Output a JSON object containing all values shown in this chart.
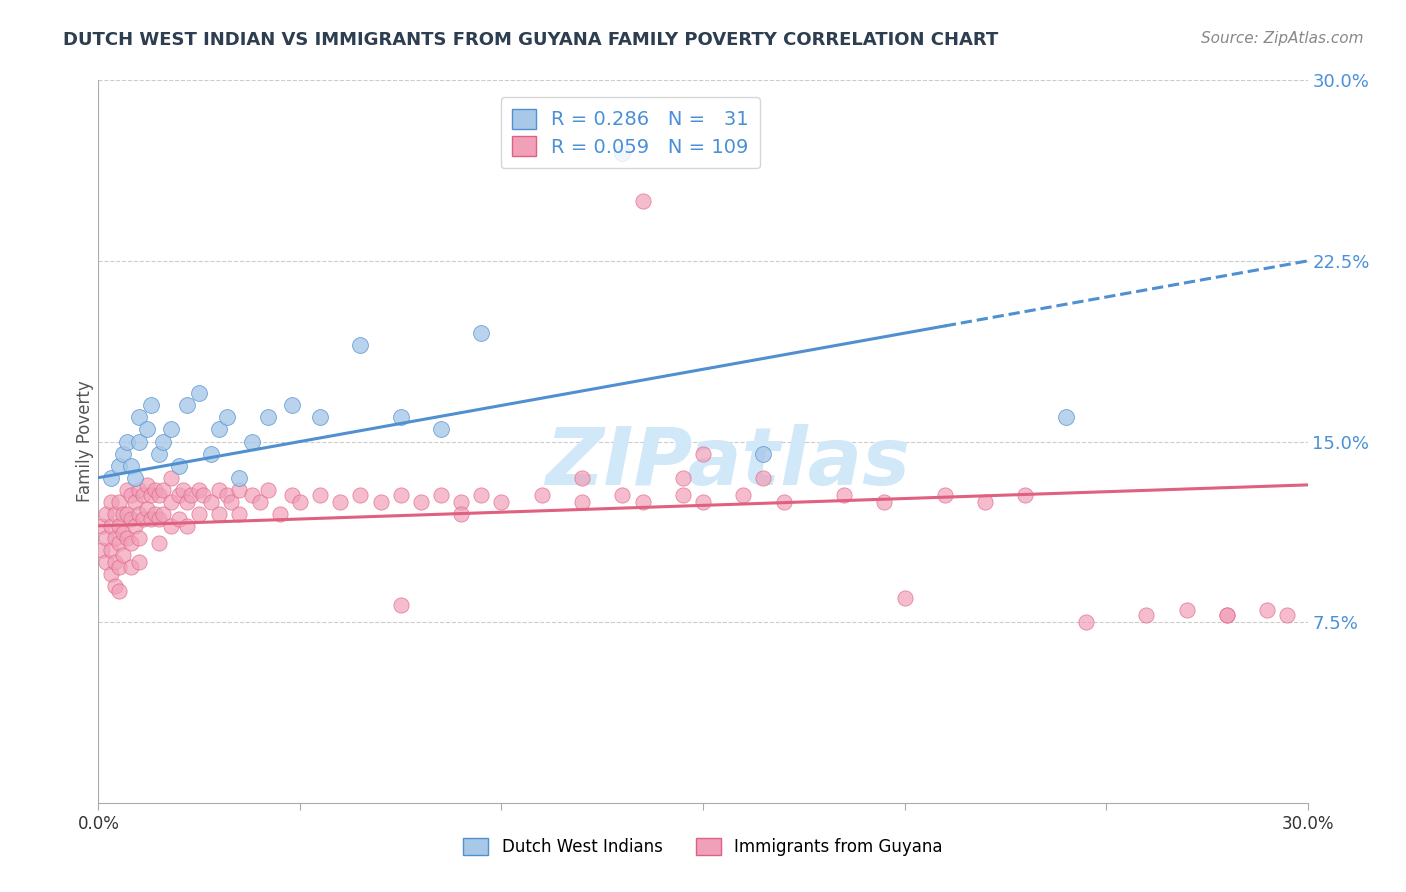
{
  "title": "DUTCH WEST INDIAN VS IMMIGRANTS FROM GUYANA FAMILY POVERTY CORRELATION CHART",
  "source": "Source: ZipAtlas.com",
  "ylabel": "Family Poverty",
  "xlim": [
    0.0,
    0.3
  ],
  "ylim": [
    0.0,
    0.3
  ],
  "legend1_label": "Dutch West Indians",
  "legend2_label": "Immigrants from Guyana",
  "R1": 0.286,
  "N1": 31,
  "R2": 0.059,
  "N2": 109,
  "color1": "#a8c8e8",
  "color2": "#f0a0b8",
  "line1_color": "#5090d0",
  "line2_color": "#e06080",
  "watermark_color": "#d0e8f8",
  "background_color": "#ffffff",
  "grid_color": "#cccccc",
  "scatter1_x": [
    0.003,
    0.005,
    0.006,
    0.007,
    0.008,
    0.009,
    0.01,
    0.01,
    0.012,
    0.013,
    0.015,
    0.016,
    0.018,
    0.02,
    0.022,
    0.025,
    0.028,
    0.03,
    0.032,
    0.035,
    0.038,
    0.042,
    0.048,
    0.055,
    0.065,
    0.075,
    0.085,
    0.095,
    0.13,
    0.165,
    0.24
  ],
  "scatter1_y": [
    0.135,
    0.14,
    0.145,
    0.15,
    0.14,
    0.135,
    0.15,
    0.16,
    0.155,
    0.165,
    0.145,
    0.15,
    0.155,
    0.14,
    0.165,
    0.17,
    0.145,
    0.155,
    0.16,
    0.135,
    0.15,
    0.16,
    0.165,
    0.16,
    0.19,
    0.16,
    0.155,
    0.195,
    0.27,
    0.145,
    0.16
  ],
  "scatter2_x": [
    0.001,
    0.001,
    0.002,
    0.002,
    0.002,
    0.003,
    0.003,
    0.003,
    0.003,
    0.004,
    0.004,
    0.004,
    0.004,
    0.005,
    0.005,
    0.005,
    0.005,
    0.005,
    0.006,
    0.006,
    0.006,
    0.007,
    0.007,
    0.007,
    0.008,
    0.008,
    0.008,
    0.008,
    0.009,
    0.009,
    0.01,
    0.01,
    0.01,
    0.01,
    0.011,
    0.011,
    0.012,
    0.012,
    0.013,
    0.013,
    0.014,
    0.014,
    0.015,
    0.015,
    0.015,
    0.016,
    0.016,
    0.018,
    0.018,
    0.018,
    0.02,
    0.02,
    0.021,
    0.022,
    0.022,
    0.023,
    0.025,
    0.025,
    0.026,
    0.028,
    0.03,
    0.03,
    0.032,
    0.033,
    0.035,
    0.035,
    0.038,
    0.04,
    0.042,
    0.045,
    0.048,
    0.05,
    0.055,
    0.06,
    0.065,
    0.07,
    0.075,
    0.08,
    0.085,
    0.09,
    0.095,
    0.1,
    0.11,
    0.12,
    0.13,
    0.135,
    0.145,
    0.15,
    0.16,
    0.17,
    0.185,
    0.195,
    0.21,
    0.22,
    0.23,
    0.245,
    0.26,
    0.27,
    0.28,
    0.29,
    0.295,
    0.135,
    0.075,
    0.165,
    0.2,
    0.28,
    0.15,
    0.09,
    0.12,
    0.145
  ],
  "scatter2_y": [
    0.115,
    0.105,
    0.12,
    0.11,
    0.1,
    0.125,
    0.115,
    0.105,
    0.095,
    0.12,
    0.11,
    0.1,
    0.09,
    0.125,
    0.115,
    0.108,
    0.098,
    0.088,
    0.12,
    0.112,
    0.103,
    0.13,
    0.12,
    0.11,
    0.128,
    0.118,
    0.108,
    0.098,
    0.125,
    0.115,
    0.13,
    0.12,
    0.11,
    0.1,
    0.128,
    0.118,
    0.132,
    0.122,
    0.128,
    0.118,
    0.13,
    0.12,
    0.128,
    0.118,
    0.108,
    0.13,
    0.12,
    0.135,
    0.125,
    0.115,
    0.128,
    0.118,
    0.13,
    0.125,
    0.115,
    0.128,
    0.13,
    0.12,
    0.128,
    0.125,
    0.13,
    0.12,
    0.128,
    0.125,
    0.13,
    0.12,
    0.128,
    0.125,
    0.13,
    0.12,
    0.128,
    0.125,
    0.128,
    0.125,
    0.128,
    0.125,
    0.128,
    0.125,
    0.128,
    0.125,
    0.128,
    0.125,
    0.128,
    0.125,
    0.128,
    0.125,
    0.128,
    0.125,
    0.128,
    0.125,
    0.128,
    0.125,
    0.128,
    0.125,
    0.128,
    0.075,
    0.078,
    0.08,
    0.078,
    0.08,
    0.078,
    0.25,
    0.082,
    0.135,
    0.085,
    0.078,
    0.145,
    0.12,
    0.135,
    0.135
  ]
}
